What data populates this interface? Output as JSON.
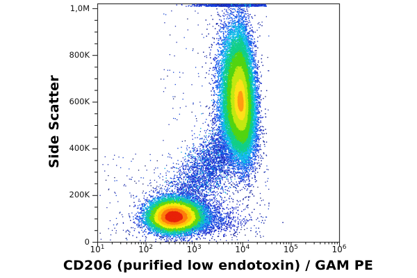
{
  "figure": {
    "background": "#ffffff",
    "frame_color": "#333333",
    "tick_color": "#222222",
    "label_color": "#000000"
  },
  "chart_data": {
    "type": "scatter",
    "subtype": "flow-cytometry-pseudocolor-density-dot-plot",
    "title": "",
    "xlabel": "CD206 (purified low endotoxin) / GAM PE",
    "ylabel": "Side Scatter",
    "x_scale": "log10",
    "x_domain": [
      10,
      1000000
    ],
    "x_major_tick_exponents": [
      1,
      2,
      3,
      4,
      5,
      6
    ],
    "x_minor_tick_mantissas": [
      2,
      3,
      4,
      5,
      6,
      7,
      8,
      9
    ],
    "y_domain": [
      0,
      1020000
    ],
    "y_major_ticks": [
      {
        "value": 0,
        "label": "0"
      },
      {
        "value": 200000,
        "label": "200K"
      },
      {
        "value": 400000,
        "label": "400K"
      },
      {
        "value": 600000,
        "label": "600K"
      },
      {
        "value": 800000,
        "label": "800K"
      },
      {
        "value": 1000000,
        "label": "1,0M"
      }
    ],
    "y_minor_tick_step": 50000,
    "legend": "none",
    "grid": "off",
    "density_colormap_low_to_high": [
      "#1d2fcf",
      "#1547e0",
      "#12b2e9",
      "#12cf9b",
      "#64d90f",
      "#f2ee0e",
      "#ffc20c",
      "#fd7d0d",
      "#e8240a"
    ],
    "rng_seed": 42,
    "populations": [
      {
        "id": "background-sparse",
        "kind": "uniform",
        "n": 620,
        "x_log_min": 1.05,
        "x_log_max": 4.55,
        "x_high_min_log": 2.3,
        "y_low_frac": 0.74,
        "y_low_range_k": [
          3,
          380
        ],
        "y_high_range_k": [
          380,
          1000
        ],
        "colors": [
          [
            0.58,
            "#1626a8"
          ],
          [
            0.85,
            "#0a3bd0"
          ],
          [
            1.0,
            "#081064"
          ]
        ]
      },
      {
        "id": "clipped-top-events",
        "kind": "topline",
        "n": 780,
        "cx_log": 3.78,
        "sx": 0.4,
        "x_min_log": 2.55,
        "x_max_log": 4.5,
        "cyan_center_log": 3.95,
        "cyan_halfwidth": 0.22,
        "cyan_frac": 0.5,
        "colors": {
          "cyan": "#16b6e8",
          "blue": "#1547e0",
          "dark": "#1d2fcf"
        }
      },
      {
        "id": "connecting-trail",
        "kind": "band",
        "n": 3200,
        "x0_log": 2.62,
        "y0_k": 140,
        "x1_log": 3.72,
        "y1_k": 430,
        "sx": 0.22,
        "sy_k": 58,
        "t_bias": 0.8,
        "colors": [
          [
            0.5,
            "#1d2fcf"
          ],
          [
            0.84,
            "#1547e0"
          ],
          [
            1.0,
            "#0fa9e0"
          ]
        ]
      },
      {
        "id": "low-ssc-blue-fringe",
        "kind": "gauss",
        "n": 2600,
        "cx_log": 2.85,
        "cy_k": 100,
        "sx_left": 0.38,
        "sx_right": 0.5,
        "sy_up": 42,
        "sy_down": 34,
        "tilt_dx_per_k": 0,
        "clip_top": false,
        "ramp_r": [
          1.6,
          2.6
        ],
        "ramp_colors": [
          "#1547e0",
          "#1d2fcf",
          "#141f9e"
        ]
      },
      {
        "id": "high-ssc-cd206pos-cluster",
        "kind": "gauss",
        "n": 24000,
        "cx_log": 3.96,
        "cy_k": 600,
        "sx_left": 0.2,
        "sx_right": 0.14,
        "sy_up": 150,
        "sy_down": 118,
        "tilt_dx_per_k": -0.00018,
        "clip_top": true,
        "ramp_r": [
          0.3,
          0.6,
          0.95,
          1.35,
          1.75,
          2.15,
          2.6,
          3.1
        ],
        "ramp_colors": [
          "#ff9d13",
          "#ffe11a",
          "#c3e812",
          "#52d411",
          "#12cf86",
          "#10bce9",
          "#1668f2",
          "#1d36d6",
          "#16239d"
        ]
      },
      {
        "id": "cd206neg-low-ssc-cluster",
        "kind": "gauss",
        "n": 16000,
        "cx_log": 2.56,
        "cy_k": 108,
        "sx_left": 0.24,
        "sx_right": 0.28,
        "sy_up": 36,
        "sy_down": 30,
        "tilt_dx_per_k": 0,
        "clip_top": false,
        "ramp_r": [
          0.62,
          0.95,
          1.22,
          1.5,
          1.85,
          2.25,
          2.7,
          3.2
        ],
        "ramp_colors": [
          "#e8240a",
          "#fd7d0d",
          "#ffc20c",
          "#f2ee0e",
          "#64d90f",
          "#12cf9b",
          "#12b2e9",
          "#2158ef",
          "#1d2fcf"
        ]
      }
    ]
  }
}
